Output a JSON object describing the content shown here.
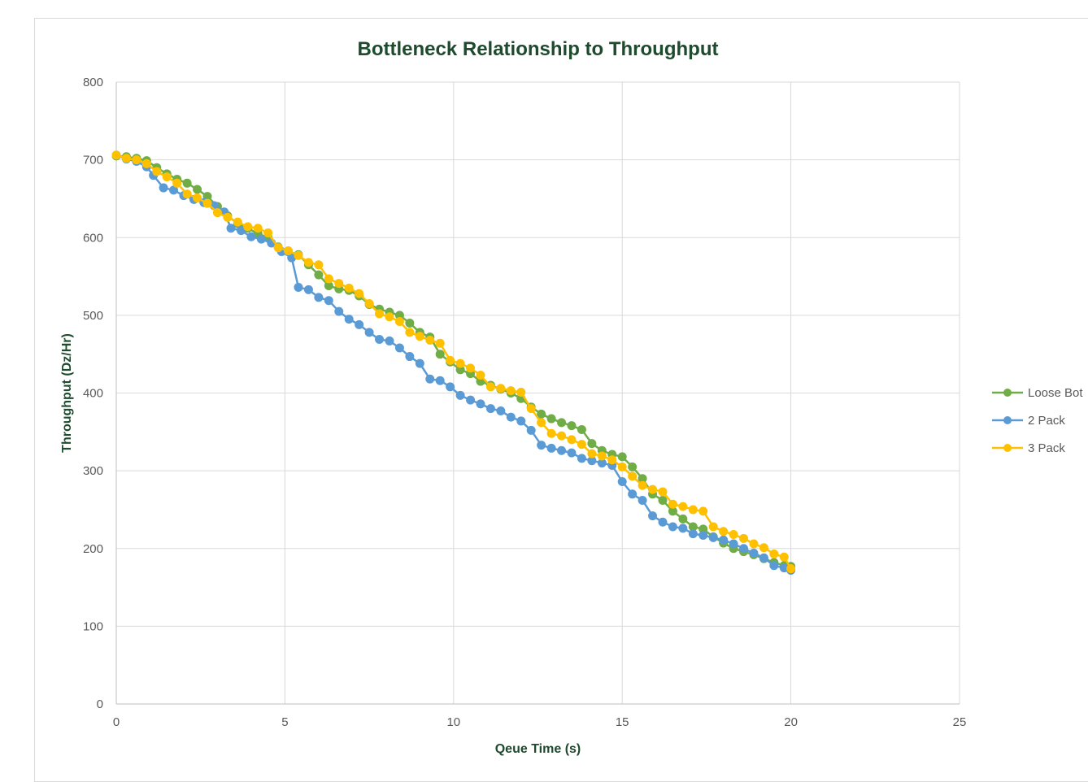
{
  "chart_data": {
    "type": "line",
    "title": "Bottleneck Relationship to Throughput",
    "xlabel": "Qeue Time (s)",
    "ylabel": "Throughput  (Dz/Hr)",
    "xlim": [
      0,
      25
    ],
    "ylim": [
      0,
      800
    ],
    "x_ticks": [
      "0",
      "5",
      "10",
      "15",
      "20",
      "25"
    ],
    "y_ticks": [
      "0",
      "100",
      "200",
      "300",
      "400",
      "500",
      "600",
      "700",
      "800"
    ],
    "grid": true,
    "legend_position": "right",
    "series": [
      {
        "name": "Loose Bot",
        "color": "#70ad47",
        "points": [
          [
            0,
            705
          ],
          [
            0.3,
            704
          ],
          [
            0.6,
            702
          ],
          [
            0.9,
            699
          ],
          [
            1.2,
            690
          ],
          [
            1.5,
            682
          ],
          [
            1.8,
            675
          ],
          [
            2.1,
            670
          ],
          [
            2.4,
            662
          ],
          [
            2.7,
            653
          ],
          [
            3.0,
            640
          ],
          [
            3.3,
            628
          ],
          [
            3.6,
            618
          ],
          [
            3.9,
            612
          ],
          [
            4.2,
            605
          ],
          [
            4.5,
            600
          ],
          [
            4.8,
            588
          ],
          [
            5.1,
            582
          ],
          [
            5.4,
            578
          ],
          [
            5.7,
            565
          ],
          [
            6.0,
            552
          ],
          [
            6.3,
            538
          ],
          [
            6.6,
            534
          ],
          [
            6.9,
            532
          ],
          [
            7.2,
            525
          ],
          [
            7.5,
            514
          ],
          [
            7.8,
            508
          ],
          [
            8.1,
            504
          ],
          [
            8.4,
            500
          ],
          [
            8.7,
            490
          ],
          [
            9.0,
            478
          ],
          [
            9.3,
            472
          ],
          [
            9.6,
            450
          ],
          [
            9.9,
            440
          ],
          [
            10.2,
            430
          ],
          [
            10.5,
            425
          ],
          [
            10.8,
            415
          ],
          [
            11.1,
            410
          ],
          [
            11.4,
            405
          ],
          [
            11.7,
            400
          ],
          [
            12.0,
            393
          ],
          [
            12.3,
            382
          ],
          [
            12.6,
            373
          ],
          [
            12.9,
            367
          ],
          [
            13.2,
            362
          ],
          [
            13.5,
            358
          ],
          [
            13.8,
            353
          ],
          [
            14.1,
            335
          ],
          [
            14.4,
            326
          ],
          [
            14.7,
            321
          ],
          [
            15.0,
            318
          ],
          [
            15.3,
            305
          ],
          [
            15.6,
            290
          ],
          [
            15.9,
            270
          ],
          [
            16.2,
            262
          ],
          [
            16.5,
            248
          ],
          [
            16.8,
            238
          ],
          [
            17.1,
            228
          ],
          [
            17.4,
            225
          ],
          [
            17.7,
            215
          ],
          [
            18.0,
            207
          ],
          [
            18.3,
            200
          ],
          [
            18.6,
            196
          ],
          [
            18.9,
            192
          ],
          [
            19.2,
            187
          ],
          [
            19.5,
            182
          ],
          [
            19.8,
            178
          ],
          [
            20.0,
            177
          ]
        ]
      },
      {
        "name": "2 Pack",
        "color": "#5b9bd5",
        "points": [
          [
            0,
            706
          ],
          [
            0.3,
            701
          ],
          [
            0.6,
            698
          ],
          [
            0.9,
            691
          ],
          [
            1.1,
            680
          ],
          [
            1.4,
            664
          ],
          [
            1.7,
            661
          ],
          [
            2.0,
            654
          ],
          [
            2.3,
            649
          ],
          [
            2.6,
            645
          ],
          [
            2.9,
            641
          ],
          [
            3.2,
            633
          ],
          [
            3.4,
            612
          ],
          [
            3.7,
            609
          ],
          [
            4.0,
            601
          ],
          [
            4.3,
            598
          ],
          [
            4.6,
            593
          ],
          [
            4.9,
            582
          ],
          [
            5.2,
            574
          ],
          [
            5.4,
            536
          ],
          [
            5.7,
            533
          ],
          [
            6.0,
            523
          ],
          [
            6.3,
            519
          ],
          [
            6.6,
            505
          ],
          [
            6.9,
            495
          ],
          [
            7.2,
            488
          ],
          [
            7.5,
            478
          ],
          [
            7.8,
            469
          ],
          [
            8.1,
            467
          ],
          [
            8.4,
            458
          ],
          [
            8.7,
            447
          ],
          [
            9.0,
            438
          ],
          [
            9.3,
            418
          ],
          [
            9.6,
            416
          ],
          [
            9.9,
            408
          ],
          [
            10.2,
            397
          ],
          [
            10.5,
            391
          ],
          [
            10.8,
            386
          ],
          [
            11.1,
            380
          ],
          [
            11.4,
            377
          ],
          [
            11.7,
            369
          ],
          [
            12.0,
            364
          ],
          [
            12.3,
            352
          ],
          [
            12.6,
            333
          ],
          [
            12.9,
            329
          ],
          [
            13.2,
            326
          ],
          [
            13.5,
            323
          ],
          [
            13.8,
            316
          ],
          [
            14.1,
            313
          ],
          [
            14.4,
            310
          ],
          [
            14.7,
            307
          ],
          [
            15.0,
            286
          ],
          [
            15.3,
            270
          ],
          [
            15.6,
            262
          ],
          [
            15.9,
            242
          ],
          [
            16.2,
            234
          ],
          [
            16.5,
            228
          ],
          [
            16.8,
            226
          ],
          [
            17.1,
            219
          ],
          [
            17.4,
            217
          ],
          [
            17.7,
            214
          ],
          [
            18.0,
            211
          ],
          [
            18.3,
            206
          ],
          [
            18.6,
            200
          ],
          [
            18.9,
            194
          ],
          [
            19.2,
            188
          ],
          [
            19.5,
            178
          ],
          [
            19.8,
            175
          ],
          [
            20.0,
            172
          ]
        ]
      },
      {
        "name": "3 Pack",
        "color": "#ffc000",
        "points": [
          [
            0,
            706
          ],
          [
            0.3,
            702
          ],
          [
            0.6,
            700
          ],
          [
            0.9,
            695
          ],
          [
            1.2,
            685
          ],
          [
            1.5,
            678
          ],
          [
            1.8,
            670
          ],
          [
            2.1,
            656
          ],
          [
            2.4,
            651
          ],
          [
            2.7,
            644
          ],
          [
            3.0,
            632
          ],
          [
            3.3,
            626
          ],
          [
            3.6,
            620
          ],
          [
            3.9,
            614
          ],
          [
            4.2,
            612
          ],
          [
            4.5,
            606
          ],
          [
            4.8,
            587
          ],
          [
            5.1,
            583
          ],
          [
            5.4,
            577
          ],
          [
            5.7,
            568
          ],
          [
            6.0,
            565
          ],
          [
            6.3,
            547
          ],
          [
            6.6,
            541
          ],
          [
            6.9,
            535
          ],
          [
            7.2,
            528
          ],
          [
            7.5,
            515
          ],
          [
            7.8,
            502
          ],
          [
            8.1,
            498
          ],
          [
            8.4,
            492
          ],
          [
            8.7,
            478
          ],
          [
            9.0,
            473
          ],
          [
            9.3,
            468
          ],
          [
            9.6,
            464
          ],
          [
            9.9,
            442
          ],
          [
            10.2,
            438
          ],
          [
            10.5,
            432
          ],
          [
            10.8,
            423
          ],
          [
            11.1,
            408
          ],
          [
            11.4,
            406
          ],
          [
            11.7,
            403
          ],
          [
            12.0,
            401
          ],
          [
            12.3,
            380
          ],
          [
            12.6,
            362
          ],
          [
            12.9,
            348
          ],
          [
            13.2,
            345
          ],
          [
            13.5,
            340
          ],
          [
            13.8,
            334
          ],
          [
            14.1,
            322
          ],
          [
            14.4,
            319
          ],
          [
            14.7,
            314
          ],
          [
            15.0,
            305
          ],
          [
            15.3,
            293
          ],
          [
            15.6,
            281
          ],
          [
            15.9,
            276
          ],
          [
            16.2,
            273
          ],
          [
            16.5,
            257
          ],
          [
            16.8,
            254
          ],
          [
            17.1,
            250
          ],
          [
            17.4,
            248
          ],
          [
            17.7,
            228
          ],
          [
            18.0,
            222
          ],
          [
            18.3,
            218
          ],
          [
            18.6,
            213
          ],
          [
            18.9,
            206
          ],
          [
            19.2,
            201
          ],
          [
            19.5,
            193
          ],
          [
            19.8,
            189
          ],
          [
            20.0,
            174
          ]
        ]
      }
    ]
  }
}
